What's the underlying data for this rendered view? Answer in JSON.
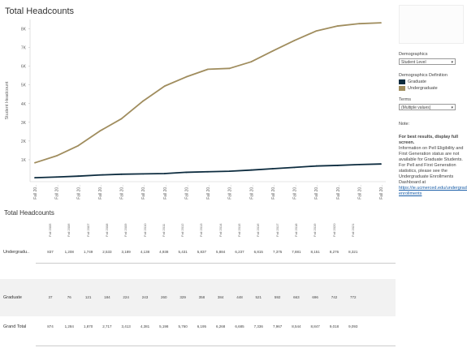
{
  "title": "Total Headcounts",
  "table_title": "Total Headcounts",
  "chart_data": {
    "type": "line",
    "title": "Total Headcounts",
    "ylabel": "Student Headcount",
    "ylim": [
      0,
      8500
    ],
    "ytick_values": [
      1000,
      2000,
      3000,
      4000,
      5000,
      6000,
      7000,
      8000
    ],
    "ytick_labels": [
      "1K",
      "2K",
      "3K",
      "4K",
      "5K",
      "6K",
      "7K",
      "8K"
    ],
    "x_labels": [
      "Fall 20..",
      "Fall 20..",
      "Fall 20..",
      "Fall 20..",
      "Fall 20..",
      "Fall 20..",
      "Fall 20..",
      "Fall 20..",
      "Fall 20..",
      "Fall 20..",
      "Fall 20..",
      "Fall 20..",
      "Fall 20..",
      "Fall 20..",
      "Fall 20..",
      "Fall 20..",
      "Fall 20.."
    ],
    "categories": [
      "Fall 2005",
      "Fall 2006",
      "Fall 2007",
      "Fall 2008",
      "Fall 2009",
      "Fall 2010",
      "Fall 2011",
      "Fall 2012",
      "Fall 2013",
      "Fall 2014",
      "Fall 2015",
      "Fall 2016",
      "Fall 2017",
      "Fall 2018",
      "Fall 2019",
      "Fall 2020",
      "Fall 2021"
    ],
    "series": [
      {
        "name": "Undergraduate",
        "color": "#a08d5e",
        "values": [
          837,
          1208,
          1749,
          2533,
          3189,
          4138,
          4938,
          5431,
          5837,
          5884,
          6237,
          6815,
          7375,
          7881,
          8151,
          8276,
          8321
        ]
      },
      {
        "name": "Graduate",
        "color": "#0d2c3f",
        "values": [
          37,
          76,
          121,
          184,
          224,
          243,
          260,
          329,
          358,
          384,
          448,
          521,
          592,
          663,
          696,
          742,
          772
        ]
      }
    ]
  },
  "panel": {
    "demographics_label": "Demographics",
    "demographics_value": "Student Level",
    "definition_label": "Demographics Definition",
    "legend": [
      {
        "name": "Graduate",
        "color": "#0d2c3f"
      },
      {
        "name": "Undergraduate",
        "color": "#a08d5e"
      }
    ],
    "terms_label": "Terms",
    "terms_value": "(Multiple values)",
    "note_label": "Note:",
    "best_results": "For best results, display full screen.",
    "info_text": "Information on Pell Eligibility and First Generation status are not available for Graduate Students. For Pell and First Generation statistics, please see the Undergraduate Enrollments Dashboard at",
    "info_link": "https://ie.ucmerced.edu/undergraduate-enrollments"
  },
  "table": {
    "headers": [
      "Fall 2005",
      "Fall 2006",
      "Fall 2007",
      "Fall 2008",
      "Fall 2009",
      "Fall 2010",
      "Fall 2011",
      "Fall 2012",
      "Fall 2013",
      "Fall 2014",
      "Fall 2015",
      "Fall 2016",
      "Fall 2017",
      "Fall 2018",
      "Fall 2019",
      "Fall 2020",
      "Fall 2021"
    ],
    "rows": [
      {
        "label": "Undergradu..",
        "values": [
          "837",
          "1,208",
          "1,749",
          "2,533",
          "3,189",
          "4,138",
          "4,938",
          "5,431",
          "5,837",
          "5,884",
          "6,237",
          "6,815",
          "7,375",
          "7,881",
          "8,151",
          "8,276",
          "8,321"
        ]
      },
      {
        "label": "Graduate",
        "values": [
          "37",
          "76",
          "121",
          "184",
          "224",
          "243",
          "260",
          "329",
          "358",
          "384",
          "448",
          "521",
          "592",
          "663",
          "696",
          "742",
          "772"
        ]
      },
      {
        "label": "Grand Total",
        "values": [
          "874",
          "1,284",
          "1,870",
          "2,717",
          "3,413",
          "4,381",
          "5,198",
          "5,760",
          "6,195",
          "6,268",
          "6,685",
          "7,336",
          "7,967",
          "8,544",
          "8,847",
          "9,018",
          "9,093"
        ]
      }
    ]
  }
}
